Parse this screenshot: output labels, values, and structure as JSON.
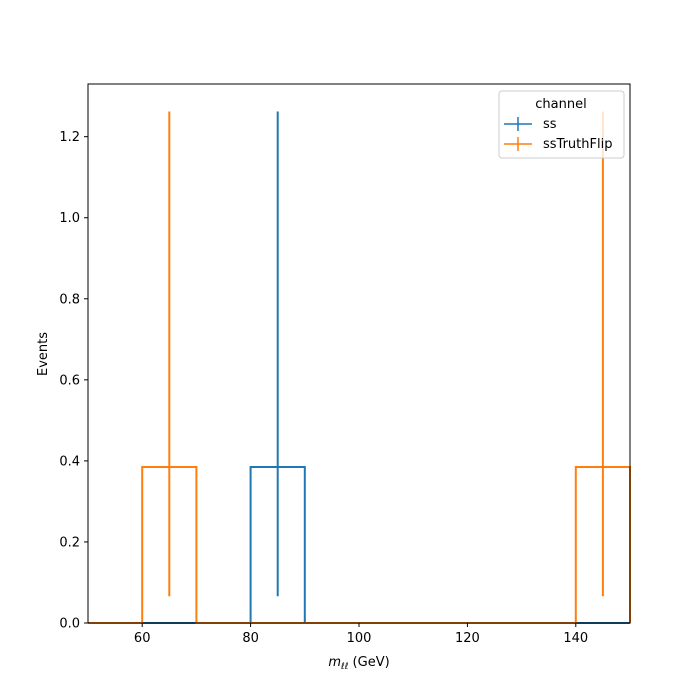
{
  "chart_data": {
    "type": "histogram",
    "xlabel_main": "m",
    "xlabel_sub": "ℓℓ",
    "xlabel_unit": " (GeV)",
    "ylabel": "Events",
    "xlim": [
      50,
      150
    ],
    "ylim": [
      0,
      1.33
    ],
    "xticks": [
      60,
      80,
      100,
      120,
      140
    ],
    "xtick_labels": [
      "60",
      "80",
      "100",
      "120",
      "140"
    ],
    "yticks": [
      0.0,
      0.2,
      0.4,
      0.6,
      0.8,
      1.0,
      1.2
    ],
    "ytick_labels": [
      "0.0",
      "0.2",
      "0.4",
      "0.6",
      "0.8",
      "1.0",
      "1.2"
    ],
    "bin_edges": [
      50,
      60,
      70,
      80,
      90,
      100,
      110,
      120,
      130,
      140,
      150
    ],
    "legend": {
      "title": "channel",
      "position": "top-right"
    },
    "series": [
      {
        "name": "ss",
        "color": "#1f77b4",
        "values": [
          0,
          0,
          0,
          0.385,
          0,
          0,
          0,
          0,
          0,
          0
        ],
        "errors": [
          {
            "x": 85,
            "low": 0.066,
            "high": 1.262
          }
        ]
      },
      {
        "name": "ssTruthFlip",
        "color": "#ff7f0e",
        "values": [
          0,
          0.385,
          0,
          0,
          0,
          0,
          0,
          0,
          0,
          0.385
        ],
        "errors": [
          {
            "x": 65,
            "low": 0.066,
            "high": 1.262
          },
          {
            "x": 145,
            "low": 0.066,
            "high": 1.262
          }
        ]
      }
    ]
  }
}
